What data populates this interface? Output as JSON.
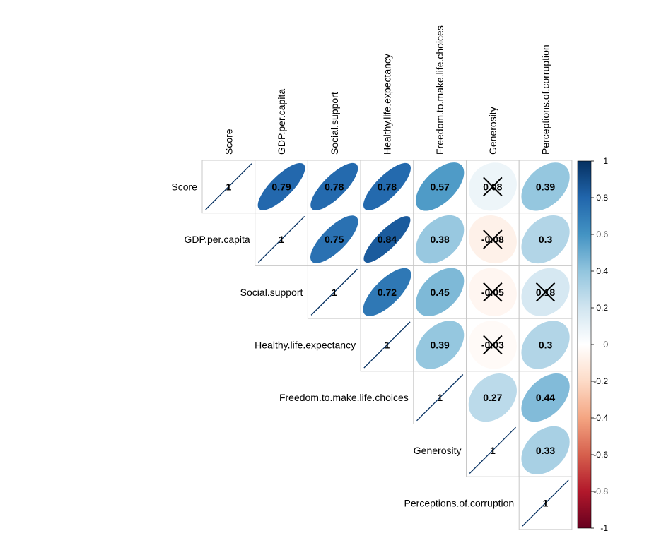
{
  "chart_data": {
    "type": "heatmap",
    "variables": [
      "Score",
      "GDP.per.capita",
      "Social.support",
      "Healthy.life.expectancy",
      "Freedom.to.make.life.choices",
      "Generosity",
      "Perceptions.of.corruption"
    ],
    "matrix": [
      [
        1,
        0.79,
        0.78,
        0.78,
        0.57,
        0.08,
        0.39
      ],
      [
        0.79,
        1,
        0.75,
        0.84,
        0.38,
        -0.08,
        0.3
      ],
      [
        0.78,
        0.75,
        1,
        0.72,
        0.45,
        -0.05,
        0.18
      ],
      [
        0.78,
        0.84,
        0.72,
        1,
        0.39,
        -0.03,
        0.3
      ],
      [
        0.57,
        0.38,
        0.45,
        0.39,
        1,
        0.27,
        0.44
      ],
      [
        0.08,
        -0.08,
        -0.05,
        -0.03,
        0.27,
        1,
        0.33
      ],
      [
        0.39,
        0.3,
        0.18,
        0.3,
        0.44,
        0.33,
        1
      ]
    ],
    "display_labels": [
      [
        "1",
        "0.79",
        "0.78",
        "0.78",
        "0.57",
        "0.08",
        "0.39"
      ],
      [
        "",
        "1",
        "0.75",
        "0.84",
        "0.38",
        "-0.08",
        "0.3"
      ],
      [
        "",
        "",
        "1",
        "0.72",
        "0.45",
        "-0.05",
        "0.18"
      ],
      [
        "",
        "",
        "",
        "1",
        "0.39",
        "-0.03",
        "0.3"
      ],
      [
        "",
        "",
        "",
        "",
        "1",
        "0.27",
        "0.44"
      ],
      [
        "",
        "",
        "",
        "",
        "",
        "1",
        "0.33"
      ],
      [
        "",
        "",
        "",
        "",
        "",
        "",
        "1"
      ]
    ],
    "insignificant": [
      [
        0,
        5
      ],
      [
        1,
        5
      ],
      [
        2,
        5
      ],
      [
        2,
        6
      ],
      [
        3,
        5
      ]
    ],
    "display": "upper triangle, ellipse shape, crossed-out insignificant cells",
    "colorbar": {
      "ticks": [
        "1",
        "0.8",
        "0.6",
        "0.4",
        "0.2",
        "0",
        "-0.2",
        "-0.4",
        "-0.6",
        "-0.8",
        "-1"
      ],
      "range": [
        -1,
        1
      ],
      "colors": [
        "#67001F",
        "#B2182B",
        "#D6604D",
        "#F4A582",
        "#FDDBC7",
        "#FFFFFF",
        "#D1E5F0",
        "#92C5DE",
        "#4393C3",
        "#2166AC",
        "#053061"
      ]
    },
    "title": "",
    "xlabel": "",
    "ylabel": ""
  }
}
